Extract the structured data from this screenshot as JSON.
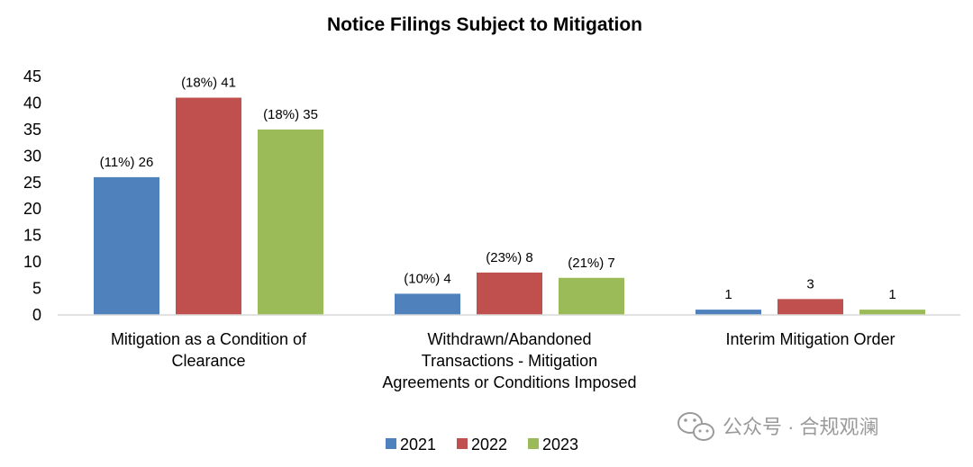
{
  "chart_data": {
    "type": "bar",
    "title": "Notice Filings Subject to Mitigation",
    "categories": [
      [
        "Mitigation as a Condition of",
        "Clearance"
      ],
      [
        "Withdrawn/Abandoned",
        "Transactions - Mitigation",
        "Agreements or Conditions Imposed"
      ],
      [
        "Interim Mitigation Order"
      ]
    ],
    "series": [
      {
        "name": "2021",
        "color": "#4f81bd",
        "values": [
          26,
          4,
          1
        ],
        "labels": [
          "(11%) 26",
          "(10%) 4",
          "1"
        ]
      },
      {
        "name": "2022",
        "color": "#c0504d",
        "values": [
          41,
          8,
          3
        ],
        "labels": [
          "(18%) 41",
          "(23%) 8",
          "3"
        ]
      },
      {
        "name": "2023",
        "color": "#9bbb59",
        "values": [
          35,
          7,
          1
        ],
        "labels": [
          "(18%) 35",
          "(21%) 7",
          "1"
        ]
      }
    ],
    "y_ticks": [
      0,
      5,
      10,
      15,
      20,
      25,
      30,
      35,
      40,
      45
    ],
    "ylim": [
      0,
      45
    ],
    "grid": false,
    "legend_position": "bottom"
  },
  "watermark": {
    "icon": "wechat-icon",
    "text": "公众号 · 合规观澜"
  }
}
